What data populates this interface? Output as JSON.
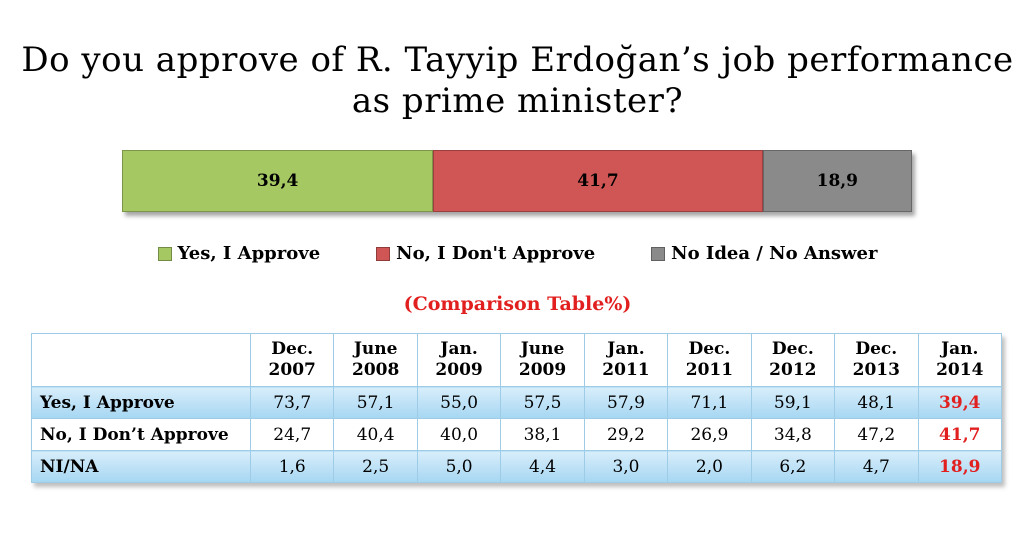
{
  "chart_data": {
    "type": "bar",
    "title_line1": "Do you approve of R. Tayyip Erdoğan’s job performance",
    "title_line2": "as prime minister?",
    "stacked_bar": {
      "series": [
        {
          "name": "Yes, I Approve",
          "value": 39.4,
          "label": "39,4",
          "color": "#a5c862"
        },
        {
          "name": "No, I Don't Approve",
          "value": 41.7,
          "label": "41,7",
          "color": "#cf5654"
        },
        {
          "name": "No Idea / No Answer",
          "value": 18.9,
          "label": "18,9",
          "color": "#8a8a8a"
        }
      ]
    },
    "subtitle": "(Comparison Table%)",
    "table": {
      "columns": [
        [
          "Dec.",
          "2007"
        ],
        [
          "June",
          "2008"
        ],
        [
          "Jan.",
          "2009"
        ],
        [
          "June",
          "2009"
        ],
        [
          "Jan.",
          "2011"
        ],
        [
          "Dec.",
          "2011"
        ],
        [
          "Dec.",
          "2012"
        ],
        [
          "Dec.",
          "2013"
        ],
        [
          "Jan.",
          "2014"
        ]
      ],
      "rows": [
        {
          "label": "Yes, I Approve",
          "values": [
            "73,7",
            "57,1",
            "55,0",
            "57,5",
            "57,9",
            "71,1",
            "59,1",
            "48,1",
            "39,4"
          ]
        },
        {
          "label": "No, I Don’t Approve",
          "values": [
            "24,7",
            "40,4",
            "40,0",
            "38,1",
            "29,2",
            "26,9",
            "34,8",
            "47,2",
            "41,7"
          ]
        },
        {
          "label": "NI/NA",
          "values": [
            "1,6",
            "2,5",
            "5,0",
            "4,4",
            "3,0",
            "2,0",
            "6,2",
            "4,7",
            "18,9"
          ]
        }
      ]
    }
  }
}
